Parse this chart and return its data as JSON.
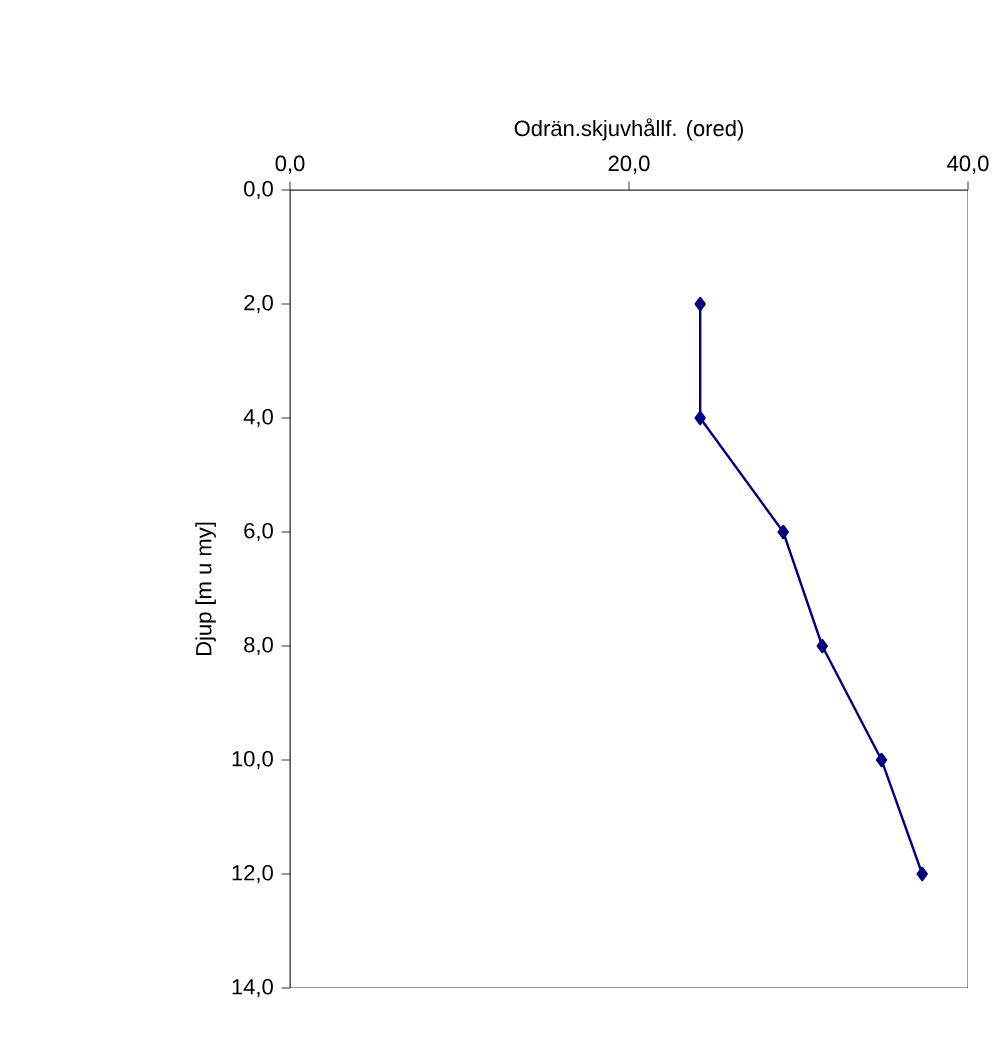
{
  "chart_data": {
    "type": "line",
    "xlabel": "Odrän.skjuvhållf. (ored)",
    "ylabel": "Djup [m u my]",
    "x": [
      24.2,
      24.2,
      29.1,
      31.4,
      34.9,
      37.3
    ],
    "series": [
      {
        "color": "#000080",
        "values": [
          2,
          4,
          6,
          8,
          10,
          12
        ]
      }
    ],
    "xlim": [
      0,
      40
    ],
    "ylim": [
      14,
      0
    ],
    "xticks": [
      {
        "value": 0,
        "label": "0,0"
      },
      {
        "value": 20,
        "label": "20,0"
      },
      {
        "value": 40,
        "label": "40,0"
      }
    ],
    "yticks": [
      {
        "value": 0,
        "label": "0,0"
      },
      {
        "value": 2,
        "label": "2,0"
      },
      {
        "value": 4,
        "label": "4,0"
      },
      {
        "value": 6,
        "label": "6,0"
      },
      {
        "value": 8,
        "label": "8,0"
      },
      {
        "value": 10,
        "label": "10,0"
      },
      {
        "value": 12,
        "label": "12,0"
      },
      {
        "value": 14,
        "label": "14,0"
      }
    ],
    "marker": "diamond",
    "line_style": "solid",
    "grid": false
  }
}
